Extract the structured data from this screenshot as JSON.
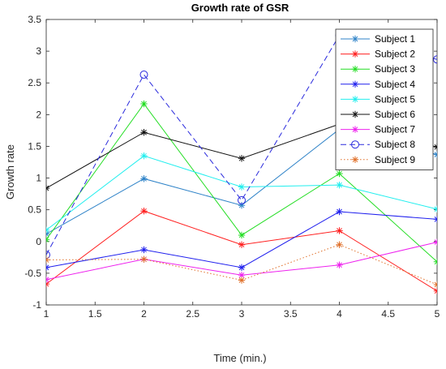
{
  "chart_data": {
    "type": "line",
    "title": "Growth rate of GSR",
    "xlabel": "Time (min.)",
    "ylabel": "Growth rate",
    "xlim": [
      1,
      5
    ],
    "ylim": [
      -1,
      3.5
    ],
    "xticks": [
      1,
      1.5,
      2,
      2.5,
      3,
      3.5,
      4,
      4.5,
      5
    ],
    "yticks": [
      -1,
      -0.5,
      0,
      0.5,
      1,
      1.5,
      2,
      2.5,
      3,
      3.5
    ],
    "x": [
      1,
      2,
      3,
      4,
      5
    ],
    "grid": false,
    "legend_position": "top-right",
    "series": [
      {
        "name": "Subject 1",
        "color": "#2f83c8",
        "marker": "asterisk",
        "dash": "solid",
        "values": [
          0.12,
          0.99,
          0.57,
          1.77,
          1.37
        ]
      },
      {
        "name": "Subject 2",
        "color": "#ff2020",
        "marker": "asterisk",
        "dash": "solid",
        "values": [
          -0.67,
          0.48,
          -0.05,
          0.17,
          -0.78
        ]
      },
      {
        "name": "Subject 3",
        "color": "#22dd22",
        "marker": "asterisk",
        "dash": "solid",
        "values": [
          0.03,
          2.17,
          0.1,
          1.07,
          -0.32
        ]
      },
      {
        "name": "Subject 4",
        "color": "#2020ee",
        "marker": "asterisk",
        "dash": "solid",
        "values": [
          -0.41,
          -0.13,
          -0.41,
          0.47,
          0.35
        ]
      },
      {
        "name": "Subject 5",
        "color": "#22eeee",
        "marker": "asterisk",
        "dash": "solid",
        "values": [
          0.18,
          1.35,
          0.86,
          0.89,
          0.51
        ]
      },
      {
        "name": "Subject 6",
        "color": "#111111",
        "marker": "asterisk",
        "dash": "solid",
        "values": [
          0.84,
          1.72,
          1.31,
          1.85,
          1.49
        ]
      },
      {
        "name": "Subject 7",
        "color": "#ee22ee",
        "marker": "asterisk",
        "dash": "solid",
        "values": [
          -0.6,
          -0.28,
          -0.53,
          -0.37,
          -0.01
        ]
      },
      {
        "name": "Subject 8",
        "color": "#2a2add",
        "marker": "circle",
        "dash": "dashed",
        "values": [
          -0.21,
          2.63,
          0.65,
          3.25,
          2.87
        ]
      },
      {
        "name": "Subject 9",
        "color": "#e0702a",
        "marker": "asterisk",
        "dash": "dotted",
        "values": [
          -0.29,
          -0.28,
          -0.61,
          -0.05,
          -0.68
        ]
      }
    ]
  }
}
